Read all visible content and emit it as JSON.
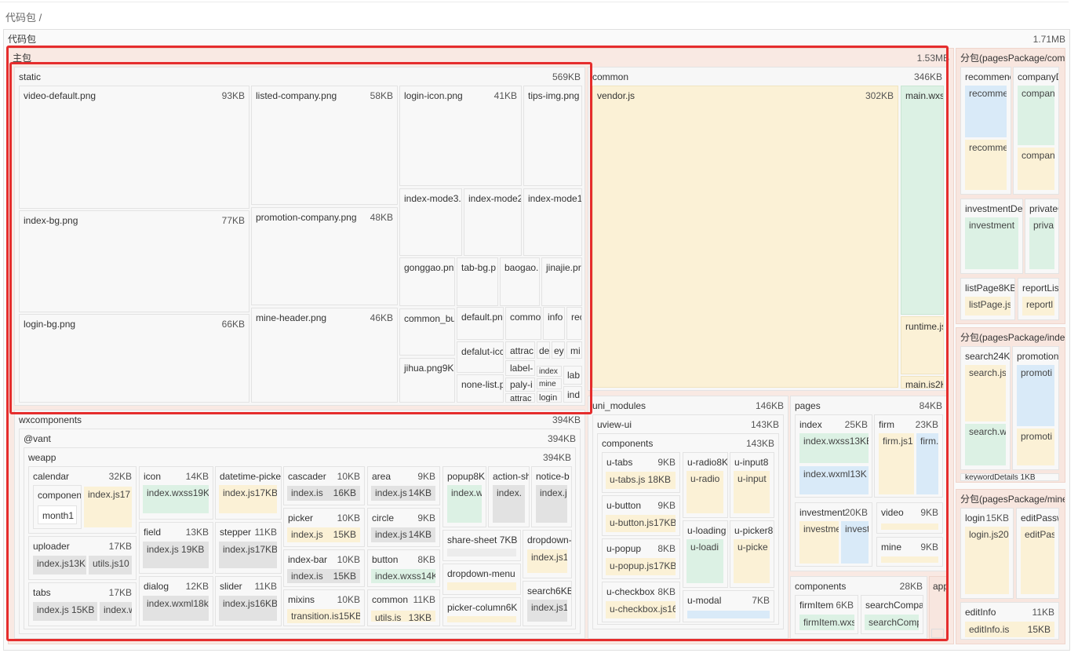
{
  "breadcrumb": "代码包 /",
  "root": {
    "name": "代码包",
    "size": "1.71MB"
  },
  "main": {
    "name": "主包",
    "size": "1.53MB"
  },
  "static": {
    "name": "static",
    "size": "569KB",
    "files": {
      "video_default": {
        "name": "video-default.png",
        "size": "93KB"
      },
      "index_bg": {
        "name": "index-bg.png",
        "size": "77KB"
      },
      "login_bg": {
        "name": "login-bg.png",
        "size": "66KB"
      },
      "listed_company": {
        "name": "listed-company.png",
        "size": "58KB"
      },
      "promotion_company": {
        "name": "promotion-company.png",
        "size": "48KB"
      },
      "mine_header": {
        "name": "mine-header.png",
        "size": "46KB"
      },
      "login_icon": {
        "name": "login-icon.png",
        "size": "41KB"
      },
      "tips_img": {
        "name": "tips-img.png"
      },
      "index_mode3": {
        "name": "index-mode3."
      },
      "index_mode2": {
        "name": "index-mode2"
      },
      "index_mode1": {
        "name": "index-mode1"
      },
      "gonggao": {
        "name": "gonggao.pn"
      },
      "tab_bg": {
        "name": "tab-bg.p"
      },
      "baogao": {
        "name": "baogao."
      },
      "jinajie": {
        "name": "jinajie.pr"
      },
      "common_bu": {
        "name": "common_bu"
      },
      "jihua": {
        "name": "jihua.png9K"
      },
      "default_pn": {
        "name": "default.pn"
      },
      "commo": {
        "name": "commo"
      },
      "info": {
        "name": "info"
      },
      "rec": {
        "name": "rec"
      },
      "defalut_icc": {
        "name": "defalut-icc"
      },
      "attrac": {
        "name": "attrac"
      },
      "de": {
        "name": "de"
      },
      "ey": {
        "name": "ey"
      },
      "mi": {
        "name": "mi"
      },
      "label": {
        "name": "label-"
      },
      "index_s": {
        "name": "index"
      },
      "lab": {
        "name": "lab"
      },
      "none_list": {
        "name": "none-list.p"
      },
      "paly": {
        "name": "paly-i"
      },
      "mine_s": {
        "name": "mine"
      },
      "ind": {
        "name": "ind"
      },
      "attrac2": {
        "name": "attrac"
      },
      "login_s": {
        "name": "login"
      }
    }
  },
  "common": {
    "name": "common",
    "size": "346KB",
    "vendor": {
      "name": "vendor.js",
      "size": "302KB"
    },
    "main_wxss": {
      "name": "main.wxs"
    },
    "runtime": {
      "name": "runtime.js"
    },
    "main_js": {
      "name": "main.js2K"
    }
  },
  "wxcomponents": {
    "name": "wxcomponents",
    "size": "394KB",
    "vant": {
      "name": "@vant",
      "size": "394KB"
    },
    "weapp": {
      "name": "weapp",
      "size": "394KB"
    },
    "calendar": {
      "name": "calendar",
      "size": "32KB",
      "components": "componen",
      "month": "month1",
      "index": "index.js17"
    },
    "uploader": {
      "name": "uploader",
      "size": "17KB",
      "index": "index.js13KB",
      "utils": "utils.js10"
    },
    "tabs": {
      "name": "tabs",
      "size": "17KB",
      "index": "index.js 15KB",
      "index2": "index.w"
    },
    "icon": {
      "name": "icon",
      "size": "14KB",
      "file": "index.wxss19K"
    },
    "field": {
      "name": "field",
      "size": "13KB",
      "file": "index.js 19KB"
    },
    "dialog": {
      "name": "dialog",
      "size": "12KB",
      "file": "index.wxml18k"
    },
    "datetime_picker": {
      "name": "datetime-picke",
      "file": "index.js17KB"
    },
    "stepper": {
      "name": "stepper",
      "size": "11KB",
      "file": "index.js17KB"
    },
    "slider": {
      "name": "slider",
      "size": "11KB",
      "file": "index.js16KB"
    },
    "cascader": {
      "name": "cascader",
      "size": "10KB",
      "file": "index.is",
      "fsize": "16KB"
    },
    "picker": {
      "name": "picker",
      "size": "10KB",
      "file": "index.js",
      "fsize": "15KB"
    },
    "index_bar": {
      "name": "index-bar",
      "size": "10KB",
      "file": "index.is",
      "fsize": "15KB"
    },
    "mixins": {
      "name": "mixins",
      "size": "10KB",
      "file": "transition.is15KB"
    },
    "area": {
      "name": "area",
      "size": "9KB",
      "file": "index.js",
      "fsize": "14KB"
    },
    "circle": {
      "name": "circle",
      "size": "9KB",
      "file": "index.js",
      "fsize": "14KB"
    },
    "button": {
      "name": "button",
      "size": "8KB",
      "file": "index.wxss14K"
    },
    "common_w": {
      "name": "common",
      "size": "11KB",
      "file": "utils.is",
      "fsize": "13KB"
    },
    "popup": {
      "name": "popup8K",
      "file": "index.w"
    },
    "action_sheet": {
      "name": "action-sh",
      "file": "index."
    },
    "notice_bar": {
      "name": "notice-b",
      "file": "index.j"
    },
    "share_sheet": {
      "name": "share-sheet 7KB"
    },
    "dropdown_menu": {
      "name": "dropdown-menu"
    },
    "picker_column": {
      "name": "picker-column6K"
    },
    "dropdown_item": {
      "name": "dropdown-",
      "file": "index.js1"
    },
    "search": {
      "name": "search6KB",
      "file": "index.js1"
    }
  },
  "uni_modules": {
    "name": "uni_modules",
    "size": "146KB",
    "uview": {
      "name": "uview-ui",
      "size": "143KB"
    },
    "components": {
      "name": "components",
      "size": "143KB"
    },
    "u_tabs": {
      "name": "u-tabs",
      "size": "9KB",
      "file": "u-tabs.js 18KB"
    },
    "u_button": {
      "name": "u-button",
      "size": "9KB",
      "file": "u-button.js17KB"
    },
    "u_popup": {
      "name": "u-popup",
      "size": "8KB",
      "file": "u-popup.js17KB"
    },
    "u_checkbox": {
      "name": "u-checkbox",
      "size": "8KB",
      "file": "u-checkbox.js16"
    },
    "u_radio": {
      "name": "u-radio8K",
      "file": "u-radio"
    },
    "u_input": {
      "name": "u-input8",
      "file": "u-input"
    },
    "u_loading": {
      "name": "u-loading",
      "file": "u-loadi"
    },
    "u_picker": {
      "name": "u-picker8",
      "file": "u-picke"
    },
    "u_modal": {
      "name": "u-modal",
      "size": "7KB"
    }
  },
  "pages": {
    "name": "pages",
    "size": "84KB",
    "index": {
      "name": "index",
      "size": "25KB",
      "wxss": "index.wxss13KB",
      "wxml": "index.wxml13K"
    },
    "firm": {
      "name": "firm",
      "size": "23KB",
      "js": "firm.js1",
      "f2": "firm."
    },
    "investment": {
      "name": "investment",
      "size": "20KB",
      "f1": "investme",
      "f2": "invest"
    },
    "video": {
      "name": "video",
      "size": "9KB"
    },
    "mine": {
      "name": "mine",
      "size": "9KB"
    }
  },
  "components_main": {
    "name": "components",
    "size": "28KB",
    "firmitem": {
      "name": "firmItem",
      "size": "6KB",
      "file": "firmItem.wxs"
    },
    "searchcompany": {
      "name": "searchCompa",
      "file": "searchComp"
    }
  },
  "app_label": "app",
  "sub_common": {
    "name": "分包(pagesPackage/comm",
    "recommend": {
      "name": "recommenc",
      "f1": "recomme",
      "f2": "recomme"
    },
    "companyd": {
      "name": "companyD",
      "f1": "compan",
      "f2": "compan"
    },
    "investmentde": {
      "name": "investmentDe",
      "f1": "investment"
    },
    "private": {
      "name": "privateC",
      "f1": "priva"
    },
    "listpage": {
      "name": "listPage8KB",
      "f1": "listPage.js"
    },
    "reportlist": {
      "name": "reportLis",
      "f1": "reportl"
    }
  },
  "sub_index": {
    "name": "分包(pagesPackage/index",
    "search": {
      "name": "search24KB",
      "f1": "search.js",
      "f2": "search.w"
    },
    "promotion": {
      "name": "promotion",
      "f1": "promoti",
      "f2": "promoti"
    },
    "more": {
      "name": "keywordDetails 1KB"
    }
  },
  "sub_mine": {
    "name": "分包(pagesPackage/mine",
    "login": {
      "name": "login",
      "size": "15KB",
      "f1": "login.js20"
    },
    "editpass": {
      "name": "editPassw",
      "f1": "editPas"
    },
    "editinfo": {
      "name": "editInfo",
      "size": "11KB",
      "f1": "editInfo.is",
      "fsize": "15KB"
    }
  },
  "colors": {
    "highlight": "#e52d2d",
    "yellow": "#fbf1d6",
    "green": "#dcf1e4",
    "blue": "#d9eaf8",
    "pink": "#f8e6df"
  }
}
